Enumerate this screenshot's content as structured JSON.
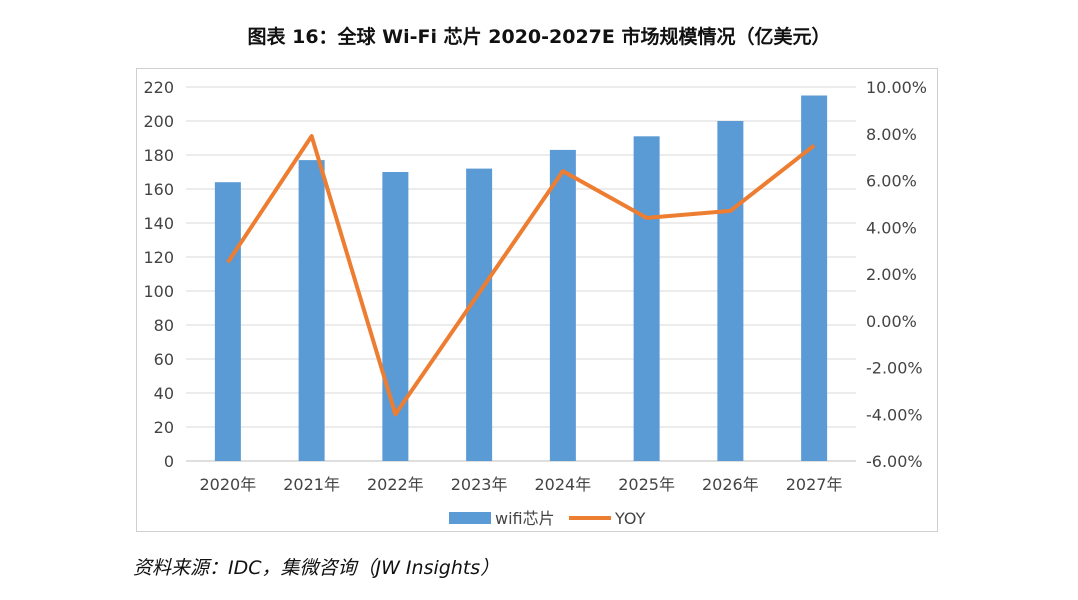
{
  "title": "图表 16：全球 Wi-Fi 芯片 2020-2027E 市场规模情况（亿美元）",
  "source": "资料来源：IDC，集微咨询（JW Insights）",
  "chart_data": {
    "type": "bar+line",
    "categories": [
      "2020年",
      "2021年",
      "2022年",
      "2023年",
      "2024年",
      "2025年",
      "2026年",
      "2027年"
    ],
    "series": [
      {
        "name": "wifi芯片",
        "type": "bar",
        "axis": "left",
        "color": "#5B9BD5",
        "values": [
          164,
          177,
          170,
          172,
          183,
          191,
          200,
          215
        ]
      },
      {
        "name": "YOY",
        "type": "line",
        "axis": "right",
        "color": "#ED7D31",
        "values": [
          2.5,
          7.9,
          -4.0,
          1.2,
          6.4,
          4.4,
          4.7,
          7.5
        ]
      }
    ],
    "y_left": {
      "min": 0,
      "max": 220,
      "step": 20,
      "tick_labels": [
        "0",
        "20",
        "40",
        "60",
        "80",
        "100",
        "120",
        "140",
        "160",
        "180",
        "200",
        "220"
      ]
    },
    "y_right": {
      "min": -6,
      "max": 10,
      "step": 2,
      "unit": "%",
      "tick_labels": [
        "-6.00%",
        "-4.00%",
        "-2.00%",
        "0.00%",
        "2.00%",
        "4.00%",
        "6.00%",
        "8.00%",
        "10.00%"
      ]
    },
    "legend": {
      "position": "bottom",
      "entries": [
        "wifi芯片",
        "YOY"
      ]
    },
    "grid": true
  }
}
